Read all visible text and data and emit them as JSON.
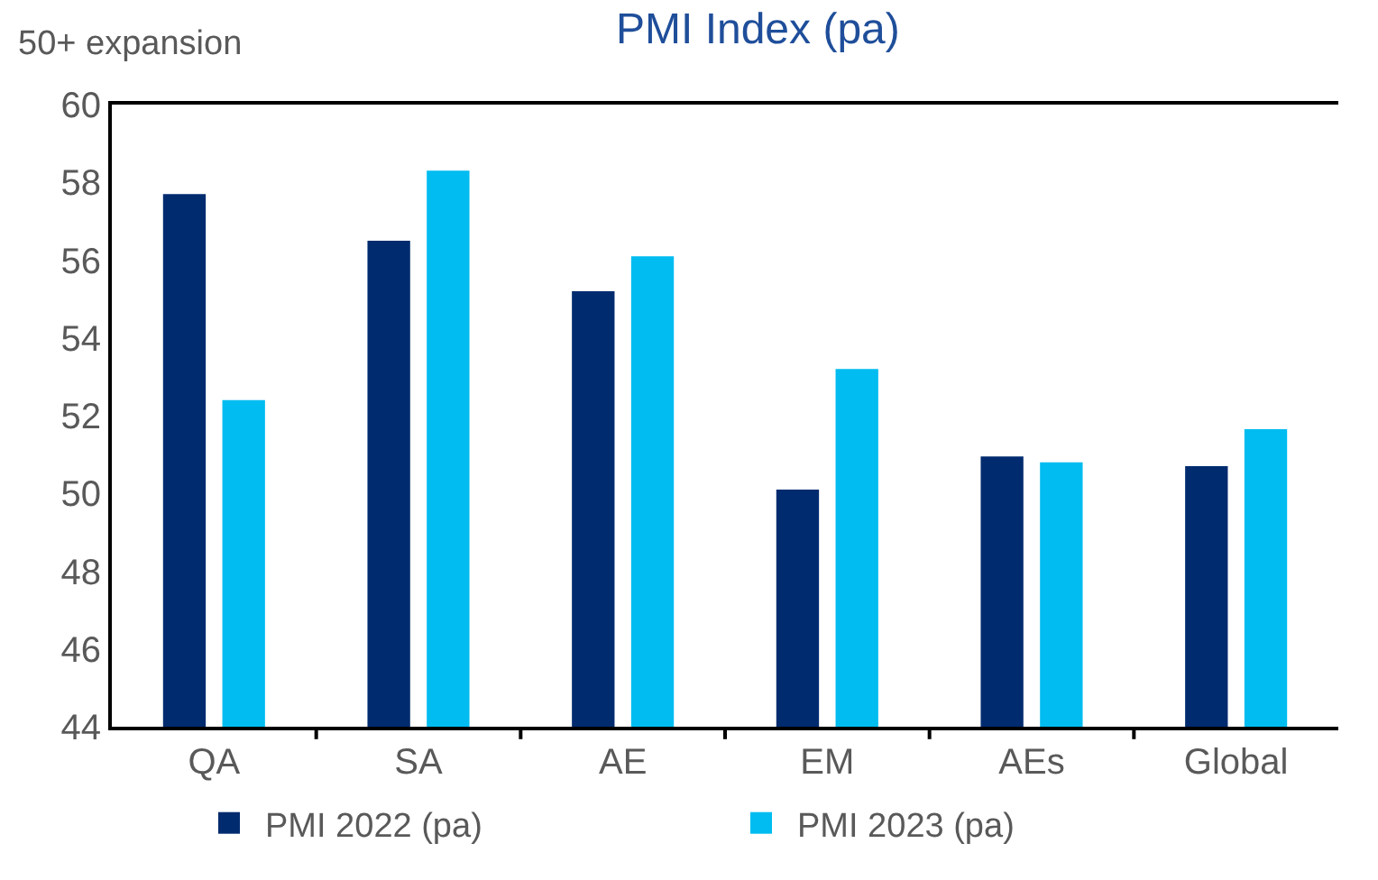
{
  "chart_data": {
    "type": "bar",
    "title": "PMI Index (pa)",
    "annotations": [
      "50+ expansion"
    ],
    "categories": [
      "QA",
      "SA",
      "AE",
      "EM",
      "AEs",
      "Global"
    ],
    "series": [
      {
        "name": "PMI 2022 (pa)",
        "color": "#002b6f",
        "values": [
          57.7,
          56.5,
          55.2,
          50.1,
          50.95,
          50.7
        ]
      },
      {
        "name": "PMI 2023 (pa)",
        "color": "#00bcf0",
        "values": [
          52.4,
          58.3,
          56.1,
          53.2,
          50.8,
          51.65
        ]
      }
    ],
    "ylim": [
      44,
      60
    ],
    "yticks": [
      44,
      46,
      48,
      50,
      52,
      54,
      56,
      58,
      60
    ],
    "legend": "bottom"
  }
}
